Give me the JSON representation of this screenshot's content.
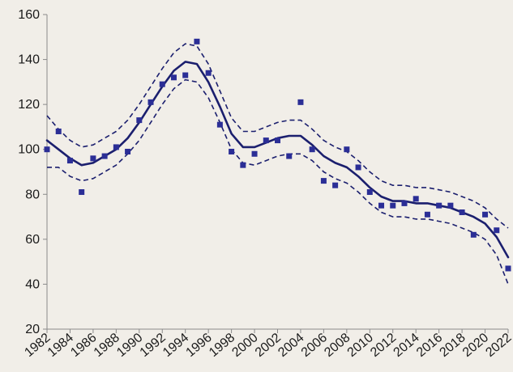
{
  "chart_data": {
    "type": "line",
    "title": "",
    "xlabel": "",
    "ylabel": "",
    "xlim": [
      1982,
      2022
    ],
    "ylim": [
      20,
      160
    ],
    "y_ticks": [
      20,
      40,
      60,
      80,
      100,
      120,
      140,
      160
    ],
    "x_ticks": [
      1982,
      1984,
      1986,
      1988,
      1990,
      1992,
      1994,
      1996,
      1998,
      2000,
      2002,
      2004,
      2006,
      2008,
      2010,
      2012,
      2014,
      2016,
      2018,
      2020,
      2022
    ],
    "x_tick_labels": [
      "1982",
      "1984",
      "1986",
      "1988",
      "1990",
      "1992",
      "1994",
      "1996",
      "1998",
      "2000",
      "2002",
      "2004",
      "2006",
      "2008",
      "2010",
      "2012",
      "2014",
      "2016",
      "2018",
      "2020",
      "2022"
    ],
    "y_tick_labels": [
      "20",
      "40",
      "60",
      "80",
      "100",
      "120",
      "140",
      "160"
    ],
    "grid": false,
    "legend": "none",
    "colors": {
      "series": "#1b1f6e",
      "points": "#2b2e96",
      "axis": "#8a8a8a",
      "background": "#f1eee8"
    },
    "series": [
      {
        "style": "markers",
        "x": [
          1982,
          1983,
          1984,
          1985,
          1986,
          1987,
          1988,
          1989,
          1990,
          1991,
          1992,
          1993,
          1994,
          1995,
          1996,
          1997,
          1998,
          1999,
          2000,
          2001,
          2002,
          2003,
          2004,
          2005,
          2006,
          2007,
          2008,
          2009,
          2010,
          2011,
          2012,
          2013,
          2014,
          2015,
          2016,
          2017,
          2018,
          2019,
          2020,
          2021,
          2022
        ],
        "y": [
          100,
          108,
          95,
          81,
          96,
          97,
          101,
          99,
          113,
          121,
          129,
          132,
          133,
          148,
          134,
          111,
          99,
          93,
          98,
          104,
          104,
          97,
          121,
          100,
          86,
          84,
          100,
          92,
          81,
          75,
          75,
          76,
          78,
          71,
          75,
          75,
          72,
          62,
          71,
          64,
          47
        ]
      },
      {
        "style": "solid",
        "x": [
          1982,
          1983,
          1984,
          1985,
          1986,
          1987,
          1988,
          1989,
          1990,
          1991,
          1992,
          1993,
          1994,
          1995,
          1996,
          1997,
          1998,
          1999,
          2000,
          2001,
          2002,
          2003,
          2004,
          2005,
          2006,
          2007,
          2008,
          2009,
          2010,
          2011,
          2012,
          2013,
          2014,
          2015,
          2016,
          2017,
          2018,
          2019,
          2020,
          2021,
          2022
        ],
        "y": [
          104,
          100,
          96,
          93,
          94,
          97,
          100,
          105,
          112,
          120,
          128,
          135,
          139,
          138,
          130,
          119,
          107,
          101,
          101,
          103,
          105,
          106,
          106,
          102,
          97,
          94,
          92,
          88,
          83,
          79,
          77,
          77,
          76,
          76,
          75,
          74,
          72,
          70,
          67,
          61,
          52
        ]
      },
      {
        "style": "dashed",
        "x": [
          1982,
          1983,
          1984,
          1985,
          1986,
          1987,
          1988,
          1989,
          1990,
          1991,
          1992,
          1993,
          1994,
          1995,
          1996,
          1997,
          1998,
          1999,
          2000,
          2001,
          2002,
          2003,
          2004,
          2005,
          2006,
          2007,
          2008,
          2009,
          2010,
          2011,
          2012,
          2013,
          2014,
          2015,
          2016,
          2017,
          2018,
          2019,
          2020,
          2021,
          2022
        ],
        "y": [
          115,
          109,
          104,
          101,
          102,
          105,
          108,
          113,
          120,
          128,
          136,
          143,
          147,
          146,
          138,
          126,
          114,
          108,
          108,
          110,
          112,
          113,
          113,
          109,
          104,
          101,
          99,
          95,
          90,
          86,
          84,
          84,
          83,
          83,
          82,
          81,
          79,
          77,
          74,
          69,
          65
        ]
      },
      {
        "style": "dashed",
        "x": [
          1982,
          1983,
          1984,
          1985,
          1986,
          1987,
          1988,
          1989,
          1990,
          1991,
          1992,
          1993,
          1994,
          1995,
          1996,
          1997,
          1998,
          1999,
          2000,
          2001,
          2002,
          2003,
          2004,
          2005,
          2006,
          2007,
          2008,
          2009,
          2010,
          2011,
          2012,
          2013,
          2014,
          2015,
          2016,
          2017,
          2018,
          2019,
          2020,
          2021,
          2022
        ],
        "y": [
          92,
          92,
          88,
          86,
          87,
          90,
          93,
          98,
          104,
          112,
          120,
          127,
          131,
          130,
          123,
          112,
          100,
          94,
          93,
          95,
          97,
          98,
          98,
          95,
          90,
          87,
          85,
          81,
          76,
          72,
          70,
          70,
          69,
          69,
          68,
          67,
          65,
          63,
          60,
          53,
          40
        ]
      }
    ]
  }
}
